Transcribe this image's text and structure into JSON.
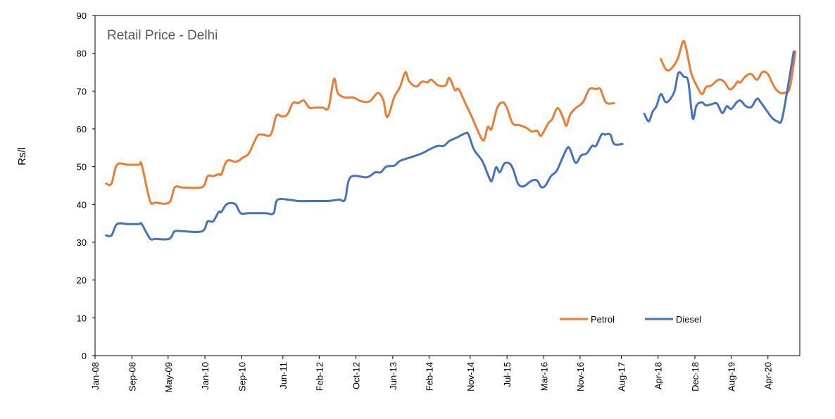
{
  "chart_data": {
    "type": "line",
    "title": "Retail Price - Delhi",
    "ylabel": "Rs/l",
    "xlabel": "",
    "ylim": [
      0,
      90
    ],
    "yticks": [
      0,
      10,
      20,
      30,
      40,
      50,
      60,
      70,
      80,
      90
    ],
    "xlim": [
      2008.0,
      2020.83
    ],
    "xtick_labels": [
      "Jan-08",
      "Sep-08",
      "May-09",
      "Jan-10",
      "Sep-10",
      "Jun-11",
      "Feb-12",
      "Oct-12",
      "Jun-13",
      "Feb-14",
      "Nov-14",
      "Jul-15",
      "Mar-16",
      "Nov-16",
      "Aug-17",
      "Apr-18",
      "Dec-18",
      "Aug-19",
      "Apr-20"
    ],
    "xtick_values": [
      2008.0,
      2008.67,
      2009.33,
      2010.0,
      2010.67,
      2011.42,
      2012.08,
      2012.75,
      2013.42,
      2014.08,
      2014.83,
      2015.5,
      2016.17,
      2016.83,
      2017.58,
      2018.25,
      2018.92,
      2019.58,
      2020.25
    ],
    "legend_position": "bottom-right",
    "grid": false,
    "series": [
      {
        "name": "Petrol",
        "color": "#ED7D31",
        "segments": [
          [
            [
              2008.2,
              45.5
            ],
            [
              2008.3,
              45.5
            ],
            [
              2008.4,
              50.5
            ],
            [
              2008.6,
              50.5
            ],
            [
              2008.8,
              50.5
            ],
            [
              2008.85,
              50.5
            ],
            [
              2009.0,
              41.0
            ],
            [
              2009.1,
              40.5
            ],
            [
              2009.35,
              40.5
            ],
            [
              2009.45,
              44.5
            ],
            [
              2009.6,
              44.5
            ],
            [
              2009.95,
              44.6
            ],
            [
              2010.05,
              47.5
            ],
            [
              2010.15,
              47.5
            ],
            [
              2010.25,
              48.0
            ],
            [
              2010.3,
              48.0
            ],
            [
              2010.4,
              51.5
            ],
            [
              2010.55,
              51.3
            ],
            [
              2010.62,
              51.6
            ],
            [
              2010.7,
              52.5
            ],
            [
              2010.8,
              53.5
            ],
            [
              2010.95,
              58.0
            ],
            [
              2011.05,
              58.5
            ],
            [
              2011.2,
              58.5
            ],
            [
              2011.3,
              63.5
            ],
            [
              2011.4,
              63.3
            ],
            [
              2011.5,
              63.8
            ],
            [
              2011.6,
              66.8
            ],
            [
              2011.7,
              66.8
            ],
            [
              2011.8,
              67.5
            ],
            [
              2011.9,
              65.6
            ],
            [
              2012.0,
              65.6
            ],
            [
              2012.15,
              65.6
            ],
            [
              2012.25,
              65.6
            ],
            [
              2012.35,
              73.2
            ],
            [
              2012.42,
              69.5
            ],
            [
              2012.55,
              68.3
            ],
            [
              2012.7,
              68.3
            ],
            [
              2012.85,
              67.3
            ],
            [
              2013.0,
              67.3
            ],
            [
              2013.15,
              69.5
            ],
            [
              2013.25,
              67.5
            ],
            [
              2013.32,
              63.1
            ],
            [
              2013.45,
              68.5
            ],
            [
              2013.55,
              71.0
            ],
            [
              2013.65,
              75.0
            ],
            [
              2013.72,
              72.5
            ],
            [
              2013.85,
              71.2
            ],
            [
              2013.95,
              72.5
            ],
            [
              2014.05,
              72.3
            ],
            [
              2014.12,
              73.0
            ],
            [
              2014.25,
              71.5
            ],
            [
              2014.38,
              71.5
            ],
            [
              2014.45,
              73.5
            ],
            [
              2014.55,
              70.3
            ],
            [
              2014.62,
              70.5
            ],
            [
              2014.75,
              66.5
            ],
            [
              2014.85,
              63.5
            ],
            [
              2015.0,
              58.5
            ],
            [
              2015.08,
              57.0
            ],
            [
              2015.15,
              60.5
            ],
            [
              2015.22,
              60.0
            ],
            [
              2015.32,
              65.5
            ],
            [
              2015.42,
              67.0
            ],
            [
              2015.5,
              65.5
            ],
            [
              2015.6,
              61.5
            ],
            [
              2015.72,
              61.0
            ],
            [
              2015.85,
              60.3
            ],
            [
              2015.95,
              59.3
            ],
            [
              2016.05,
              59.5
            ],
            [
              2016.12,
              58.2
            ],
            [
              2016.25,
              61.5
            ],
            [
              2016.32,
              62.5
            ],
            [
              2016.42,
              65.5
            ],
            [
              2016.52,
              63.0
            ],
            [
              2016.58,
              60.8
            ],
            [
              2016.65,
              63.8
            ],
            [
              2016.75,
              65.5
            ],
            [
              2016.88,
              67.0
            ],
            [
              2017.0,
              70.5
            ],
            [
              2017.12,
              70.5
            ],
            [
              2017.2,
              70.5
            ],
            [
              2017.3,
              67.0
            ],
            [
              2017.45,
              66.8
            ]
          ],
          [
            [
              2018.3,
              78.5
            ],
            [
              2018.38,
              76.0
            ],
            [
              2018.45,
              75.5
            ],
            [
              2018.55,
              77.0
            ],
            [
              2018.62,
              79.0
            ],
            [
              2018.7,
              83.0
            ],
            [
              2018.75,
              82.0
            ],
            [
              2018.85,
              75.0
            ],
            [
              2018.95,
              71.5
            ],
            [
              2019.05,
              69.2
            ],
            [
              2019.12,
              71.0
            ],
            [
              2019.22,
              71.5
            ],
            [
              2019.35,
              73.0
            ],
            [
              2019.45,
              72.5
            ],
            [
              2019.55,
              70.5
            ],
            [
              2019.62,
              71.0
            ],
            [
              2019.7,
              72.5
            ],
            [
              2019.75,
              72.3
            ],
            [
              2019.85,
              74.0
            ],
            [
              2019.95,
              74.5
            ],
            [
              2020.05,
              73.0
            ],
            [
              2020.15,
              75.0
            ],
            [
              2020.25,
              74.5
            ],
            [
              2020.35,
              71.5
            ],
            [
              2020.45,
              69.7
            ],
            [
              2020.55,
              69.5
            ],
            [
              2020.65,
              71.0
            ],
            [
              2020.75,
              80.5
            ]
          ]
        ]
      },
      {
        "name": "Diesel",
        "color": "#4472C4",
        "segments": [
          [
            [
              2008.2,
              31.8
            ],
            [
              2008.3,
              31.8
            ],
            [
              2008.4,
              34.8
            ],
            [
              2008.6,
              34.8
            ],
            [
              2008.8,
              34.8
            ],
            [
              2008.85,
              34.8
            ],
            [
              2009.0,
              31.0
            ],
            [
              2009.1,
              30.9
            ],
            [
              2009.35,
              30.9
            ],
            [
              2009.45,
              32.9
            ],
            [
              2009.6,
              32.9
            ],
            [
              2009.95,
              32.9
            ],
            [
              2010.05,
              35.5
            ],
            [
              2010.15,
              35.5
            ],
            [
              2010.25,
              38.0
            ],
            [
              2010.3,
              38.0
            ],
            [
              2010.4,
              40.1
            ],
            [
              2010.55,
              40.1
            ],
            [
              2010.65,
              37.7
            ],
            [
              2010.8,
              37.7
            ],
            [
              2011.1,
              37.7
            ],
            [
              2011.25,
              37.7
            ],
            [
              2011.32,
              41.2
            ],
            [
              2011.55,
              41.2
            ],
            [
              2011.7,
              40.9
            ],
            [
              2011.9,
              40.9
            ],
            [
              2012.2,
              40.9
            ],
            [
              2012.3,
              41.0
            ],
            [
              2012.45,
              41.3
            ],
            [
              2012.55,
              41.3
            ],
            [
              2012.65,
              47.2
            ],
            [
              2012.95,
              47.2
            ],
            [
              2013.1,
              48.5
            ],
            [
              2013.2,
              48.5
            ],
            [
              2013.3,
              50.0
            ],
            [
              2013.45,
              50.3
            ],
            [
              2013.55,
              51.5
            ],
            [
              2013.75,
              52.5
            ],
            [
              2013.95,
              53.5
            ],
            [
              2014.15,
              55.0
            ],
            [
              2014.25,
              55.5
            ],
            [
              2014.35,
              55.5
            ],
            [
              2014.45,
              56.8
            ],
            [
              2014.6,
              57.8
            ],
            [
              2014.75,
              58.9
            ],
            [
              2014.8,
              58.5
            ],
            [
              2014.9,
              54.5
            ],
            [
              2015.05,
              51.5
            ],
            [
              2015.15,
              48.0
            ],
            [
              2015.22,
              46.2
            ],
            [
              2015.3,
              49.8
            ],
            [
              2015.37,
              48.5
            ],
            [
              2015.45,
              50.8
            ],
            [
              2015.55,
              50.8
            ],
            [
              2015.62,
              49.0
            ],
            [
              2015.7,
              45.5
            ],
            [
              2015.8,
              44.8
            ],
            [
              2015.95,
              46.3
            ],
            [
              2016.05,
              46.3
            ],
            [
              2016.12,
              44.6
            ],
            [
              2016.2,
              45.0
            ],
            [
              2016.3,
              47.5
            ],
            [
              2016.4,
              48.8
            ],
            [
              2016.5,
              52.0
            ],
            [
              2016.6,
              55.0
            ],
            [
              2016.65,
              54.5
            ],
            [
              2016.75,
              51.0
            ],
            [
              2016.85,
              53.0
            ],
            [
              2016.95,
              53.5
            ],
            [
              2017.05,
              55.5
            ],
            [
              2017.12,
              55.5
            ],
            [
              2017.22,
              58.5
            ],
            [
              2017.28,
              58.5
            ],
            [
              2017.38,
              58.5
            ],
            [
              2017.45,
              56.0
            ],
            [
              2017.6,
              56.0
            ]
          ],
          [
            [
              2018.0,
              64.0
            ],
            [
              2018.08,
              62.0
            ],
            [
              2018.15,
              64.5
            ],
            [
              2018.22,
              66.0
            ],
            [
              2018.3,
              69.2
            ],
            [
              2018.38,
              67.2
            ],
            [
              2018.45,
              67.5
            ],
            [
              2018.55,
              70.0
            ],
            [
              2018.62,
              74.8
            ],
            [
              2018.72,
              73.8
            ],
            [
              2018.8,
              72.5
            ],
            [
              2018.88,
              62.8
            ],
            [
              2018.95,
              66.2
            ],
            [
              2019.05,
              67.0
            ],
            [
              2019.12,
              66.2
            ],
            [
              2019.22,
              66.5
            ],
            [
              2019.32,
              66.7
            ],
            [
              2019.42,
              64.2
            ],
            [
              2019.5,
              66.0
            ],
            [
              2019.58,
              65.3
            ],
            [
              2019.68,
              67.0
            ],
            [
              2019.75,
              67.5
            ],
            [
              2019.85,
              66.0
            ],
            [
              2019.95,
              65.8
            ],
            [
              2020.05,
              68.0
            ],
            [
              2020.12,
              67.0
            ],
            [
              2020.22,
              65.0
            ],
            [
              2020.32,
              63.0
            ],
            [
              2020.42,
              62.0
            ],
            [
              2020.5,
              62.3
            ],
            [
              2020.6,
              70.0
            ],
            [
              2020.72,
              80.5
            ]
          ]
        ]
      }
    ]
  }
}
